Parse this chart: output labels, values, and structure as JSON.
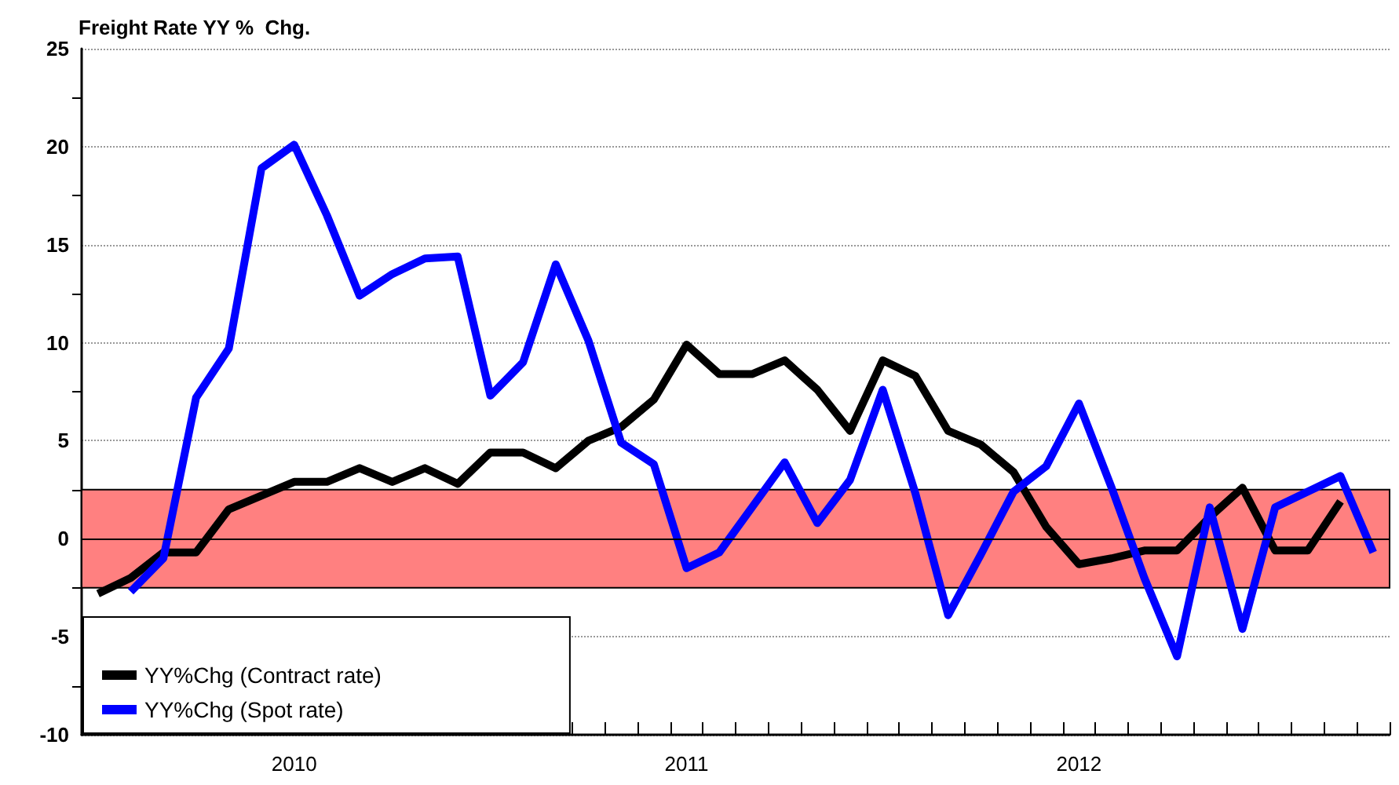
{
  "chart_data": {
    "type": "line",
    "title": "Freight Rate YY %  Chg.",
    "categories": [
      null,
      null,
      null,
      null,
      null,
      null,
      "2010",
      null,
      null,
      null,
      null,
      null,
      null,
      null,
      null,
      null,
      null,
      null,
      "2011",
      null,
      null,
      null,
      null,
      null,
      null,
      null,
      null,
      null,
      null,
      null,
      "2012",
      null,
      null,
      null,
      null,
      null,
      null,
      null,
      null,
      null
    ],
    "series": [
      {
        "name": "YY%Chg (Contract rate)",
        "color": "#000000",
        "values": [
          -2.8,
          -2.0,
          -0.7,
          -0.7,
          1.5,
          2.2,
          2.9,
          2.9,
          3.6,
          2.9,
          3.6,
          2.8,
          4.4,
          4.4,
          3.6,
          5.0,
          5.7,
          7.1,
          9.9,
          8.4,
          8.4,
          9.1,
          7.6,
          5.5,
          9.1,
          8.3,
          5.5,
          4.8,
          3.4,
          0.6,
          -1.3,
          -1.0,
          -0.6,
          -0.6,
          1.1,
          2.6,
          -0.6,
          -0.6,
          1.9,
          null
        ]
      },
      {
        "name": "YY%Chg (Spot rate)",
        "color": "#0000ff",
        "values": [
          null,
          -2.7,
          -1.0,
          7.2,
          9.7,
          18.9,
          20.1,
          16.5,
          12.4,
          13.5,
          14.3,
          14.4,
          7.3,
          9.0,
          14.0,
          10.1,
          4.9,
          3.8,
          -1.5,
          -0.7,
          1.6,
          3.9,
          0.8,
          3.0,
          7.6,
          2.3,
          -3.9,
          -0.8,
          2.4,
          3.7,
          6.9,
          2.6,
          -2.0,
          -6.0,
          1.6,
          -4.6,
          1.6,
          2.4,
          3.2,
          -0.7
        ]
      }
    ],
    "ylim": [
      -10,
      25
    ],
    "yticks": [
      -10,
      {
        "value": -7.5,
        "label": null
      },
      -5,
      {
        "value": -2.5,
        "label": null
      },
      0,
      {
        "value": 2.5,
        "label": null
      },
      5,
      {
        "value": 7.5,
        "label": null
      },
      10,
      {
        "value": 12.5,
        "label": null
      },
      15,
      {
        "value": 17.5,
        "label": null
      },
      20,
      {
        "value": 22.5,
        "label": null
      },
      25
    ],
    "bands": [
      {
        "axis": "y",
        "from": -2.5,
        "to": 2.5,
        "color": "#ff8080"
      }
    ],
    "ref_lines": [
      {
        "axis": "y",
        "value": 0,
        "color": "#000000"
      }
    ],
    "grid": "y",
    "legend": "bottom left",
    "marker": "none",
    "line_style": "solid"
  }
}
